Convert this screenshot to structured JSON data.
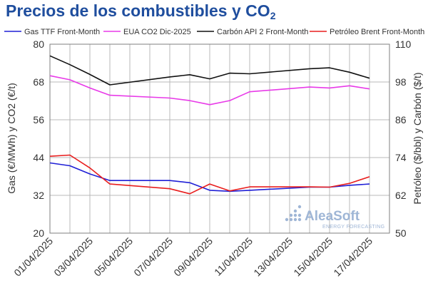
{
  "title": {
    "main": "Precios de los combustibles y CO",
    "sub": "2"
  },
  "logo": {
    "name": "AleaSoft",
    "tagline": "ENERGY FORECASTING"
  },
  "chart_data": {
    "type": "line",
    "x": [
      "01/04/2025",
      "02/04/2025",
      "03/04/2025",
      "04/04/2025",
      "05/04/2025",
      "06/04/2025",
      "07/04/2025",
      "08/04/2025",
      "09/04/2025",
      "10/04/2025",
      "11/04/2025",
      "12/04/2025",
      "13/04/2025",
      "14/04/2025",
      "15/04/2025",
      "16/04/2025",
      "17/04/2025",
      "18/04/2025"
    ],
    "x_tick_labels": [
      "01/04/2025",
      "03/04/2025",
      "05/04/2025",
      "07/04/2025",
      "09/04/2025",
      "11/04/2025",
      "13/04/2025",
      "15/04/2025",
      "17/04/2025"
    ],
    "ylabel_left": "Gas (€/MWh) y CO2 (€/t)",
    "ylabel_right": "Petróleo ($/bbl) y Carbón ($/t)",
    "ylim_left": [
      20,
      80
    ],
    "yticks_left": [
      "80",
      "68",
      "56",
      "44",
      "32",
      "20"
    ],
    "ylim_right": [
      50,
      110
    ],
    "yticks_right": [
      "110",
      "98",
      "86",
      "74",
      "62",
      "50"
    ],
    "grid": "vertical gridlines at each date, horizontal gridlines at each tick",
    "legend_position": "top",
    "series": [
      {
        "name": "Gas TTF Front-Month",
        "axis": "left",
        "color": "#1f1fd6",
        "values": [
          42.3,
          41.4,
          38.8,
          36.7,
          null,
          null,
          36.7,
          36.0,
          33.6,
          33.3,
          33.6,
          null,
          null,
          34.6,
          34.6,
          35.2,
          35.6,
          null
        ]
      },
      {
        "name": "EUA CO2 Dic-2025",
        "axis": "left",
        "color": "#e83ae8",
        "values": [
          70.0,
          68.7,
          66.1,
          63.8,
          null,
          null,
          62.9,
          62.1,
          60.8,
          62.1,
          64.9,
          null,
          null,
          66.4,
          66.1,
          66.8,
          65.8,
          null
        ]
      },
      {
        "name": "Carbón API 2 Front-Month",
        "axis": "right",
        "color": "#111111",
        "values": [
          106.3,
          103.5,
          100.4,
          97.1,
          null,
          null,
          99.6,
          100.3,
          99.0,
          100.8,
          100.6,
          null,
          null,
          102.2,
          102.5,
          101.1,
          99.2,
          null
        ]
      },
      {
        "name": "Petróleo Brent Front-Month",
        "axis": "right",
        "color": "#e81e1e",
        "values": [
          74.4,
          74.8,
          70.7,
          65.6,
          null,
          null,
          64.1,
          62.5,
          65.6,
          63.4,
          64.7,
          null,
          null,
          64.7,
          64.6,
          65.8,
          67.9,
          null
        ]
      }
    ]
  }
}
